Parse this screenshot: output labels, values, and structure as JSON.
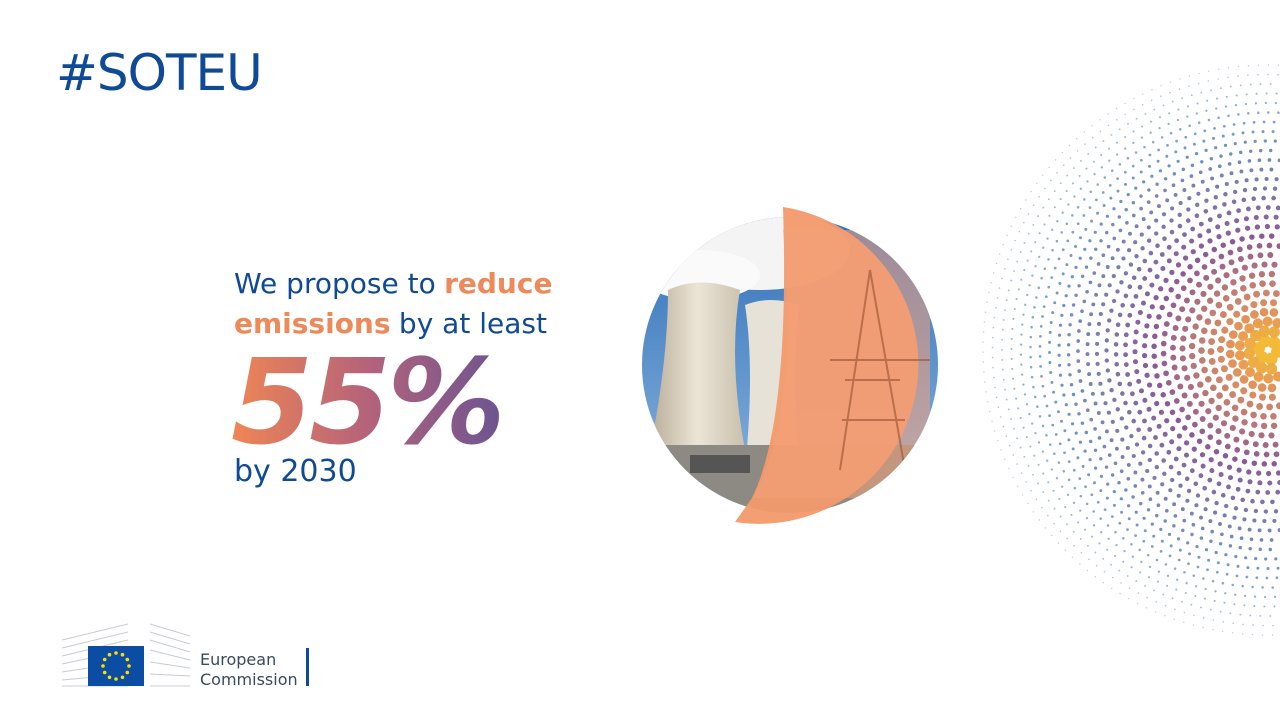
{
  "header": {
    "hashtag": "#SOTEU"
  },
  "message": {
    "line1": {
      "text": "We propose to",
      "highlight": "reduce"
    },
    "line2": {
      "highlight": "emissions",
      "text": "by at least"
    },
    "figure": "55%",
    "deadline": "by 2030"
  },
  "logo": {
    "line1": "European",
    "line2": "Commission"
  }
}
